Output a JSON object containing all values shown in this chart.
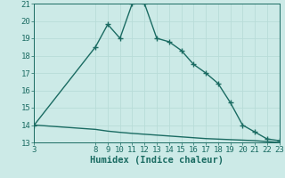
{
  "xlabel": "Humidex (Indice chaleur)",
  "bg_color": "#cceae7",
  "line_color": "#1a6b62",
  "grid_color": "#b8dcd8",
  "line1_x": [
    3,
    8,
    9,
    10,
    11,
    12,
    13,
    14,
    15,
    16,
    17,
    18,
    19,
    20,
    21,
    22,
    23
  ],
  "line1_y": [
    14.0,
    18.5,
    19.8,
    19.0,
    21.0,
    21.0,
    19.0,
    18.8,
    18.3,
    17.5,
    17.0,
    16.4,
    15.3,
    14.0,
    13.6,
    13.2,
    13.1
  ],
  "line2_x": [
    3,
    8,
    9,
    10,
    11,
    12,
    13,
    14,
    15,
    16,
    17,
    18,
    19,
    20,
    21,
    22,
    23
  ],
  "line2_y": [
    14.0,
    13.75,
    13.65,
    13.58,
    13.52,
    13.47,
    13.42,
    13.37,
    13.32,
    13.27,
    13.22,
    13.19,
    13.16,
    13.13,
    13.1,
    13.05,
    13.0
  ],
  "xlim": [
    3,
    23
  ],
  "ylim": [
    13,
    21
  ],
  "xticks": [
    3,
    8,
    9,
    10,
    11,
    12,
    13,
    14,
    15,
    16,
    17,
    18,
    19,
    20,
    21,
    22,
    23
  ],
  "yticks": [
    13,
    14,
    15,
    16,
    17,
    18,
    19,
    20,
    21
  ],
  "marker": "+",
  "marker_size": 4,
  "linewidth": 1.0,
  "tick_fontsize": 6.5,
  "xlabel_fontsize": 7.5
}
